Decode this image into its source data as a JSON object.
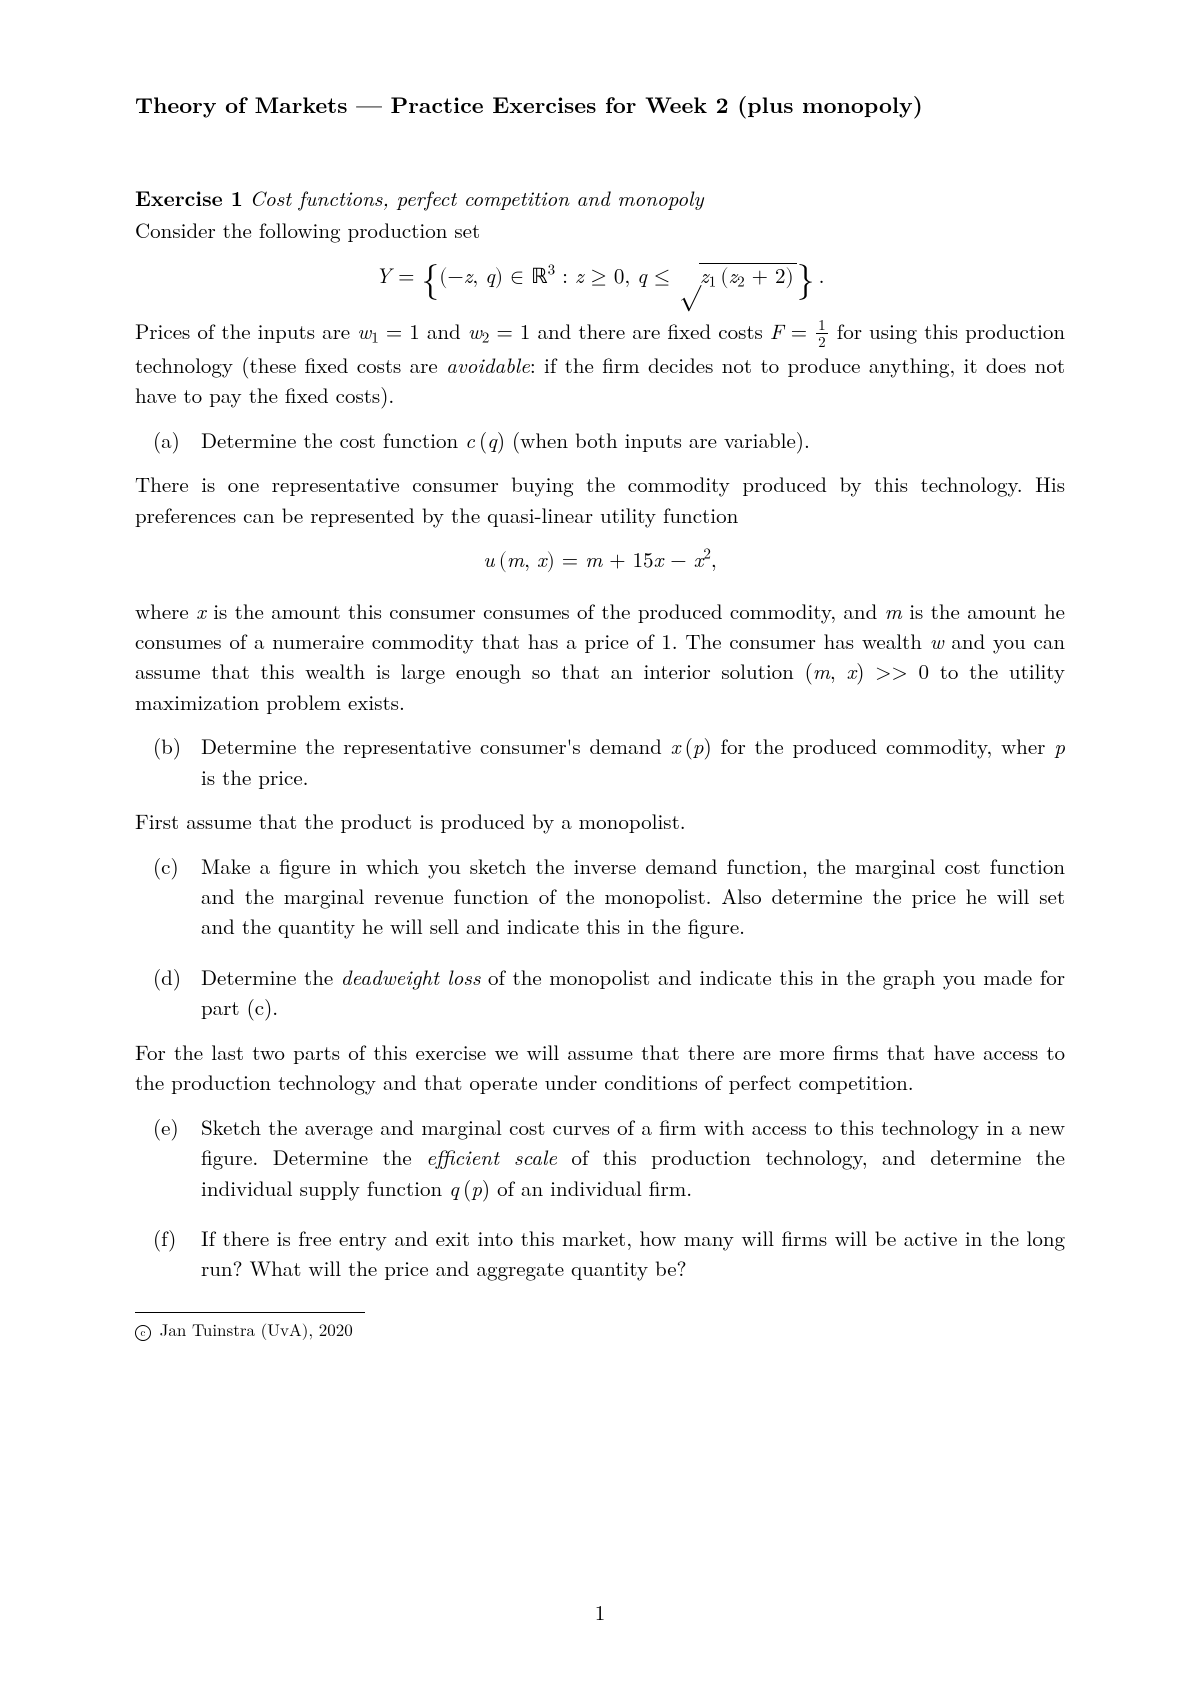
{
  "title": "Theory of Markets — Practice Exercises for Week 2 (plus monopoly)",
  "exercise_label": "Exercise 1",
  "exercise_topic": "Cost functions, perfect competition and monopoly",
  "intro_line": "Consider the following production set",
  "para_prices_1": "Prices of the inputs are ",
  "para_prices_2": " and ",
  "para_prices_3": " and there are fixed costs ",
  "para_prices_4": " for using this production technology (these fixed costs are ",
  "avoidable": "avoidable",
  "para_prices_5": ": if the firm decides not to produce anything, it does not have to pay the fixed costs).",
  "item_a": "Determine the cost function ",
  "item_a_tail": " (when both inputs are variable).",
  "para_consumer": "There is one representative consumer buying the commodity produced by this technology. His preferences can be represented by the quasi-linear utility function",
  "para_where_1": "where ",
  "para_where_2": " is the amount this consumer consumes of the produced commodity, and ",
  "para_where_3": " is the amount he consumes of a numeraire commodity that has a price of 1.  The consumer has wealth ",
  "para_where_4": " and you can assume that this wealth is large enough so that an interior solution ",
  "para_where_5": " to the utility maximization problem exists.",
  "item_b_1": "Determine the representative consumer's demand ",
  "item_b_2": " for the produced commodity, wher ",
  "item_b_3": " is the price.",
  "para_monopolist": "First assume that the product is produced by a monopolist.",
  "item_c": "Make a figure in which you sketch the inverse demand function, the marginal cost function and the marginal revenue function of the monopolist. Also determine the price he will set and the quantity he will sell and indicate this in the figure.",
  "item_d_1": "Determine the ",
  "deadweight": "deadweight loss",
  "item_d_2": " of the monopolist and indicate this in the graph you made for part (c).",
  "para_lasttwo": "For the last two parts of this exercise we will assume that there are more firms that have access to the production technology and that operate under conditions of perfect competition.",
  "item_e_1": "Sketch the average and marginal cost curves of a firm with access to this technology in a new figure. Determine the ",
  "efficient_scale": "efficient scale",
  "item_e_2": " of this production technology, and determine the individual supply function ",
  "item_e_3": " of an individual firm.",
  "item_f": "If there is free entry and exit into this market, how many will firms will be active in the long run? What will the price and aggregate quantity be?",
  "footnote": " Jan Tuinstra (UvA), 2020",
  "labels": {
    "a": "(a)",
    "b": "(b)",
    "c": "(c)",
    "d": "(d)",
    "e": "(e)",
    "f": "(f)"
  },
  "page_number": "1",
  "copyright_symbol": "c"
}
